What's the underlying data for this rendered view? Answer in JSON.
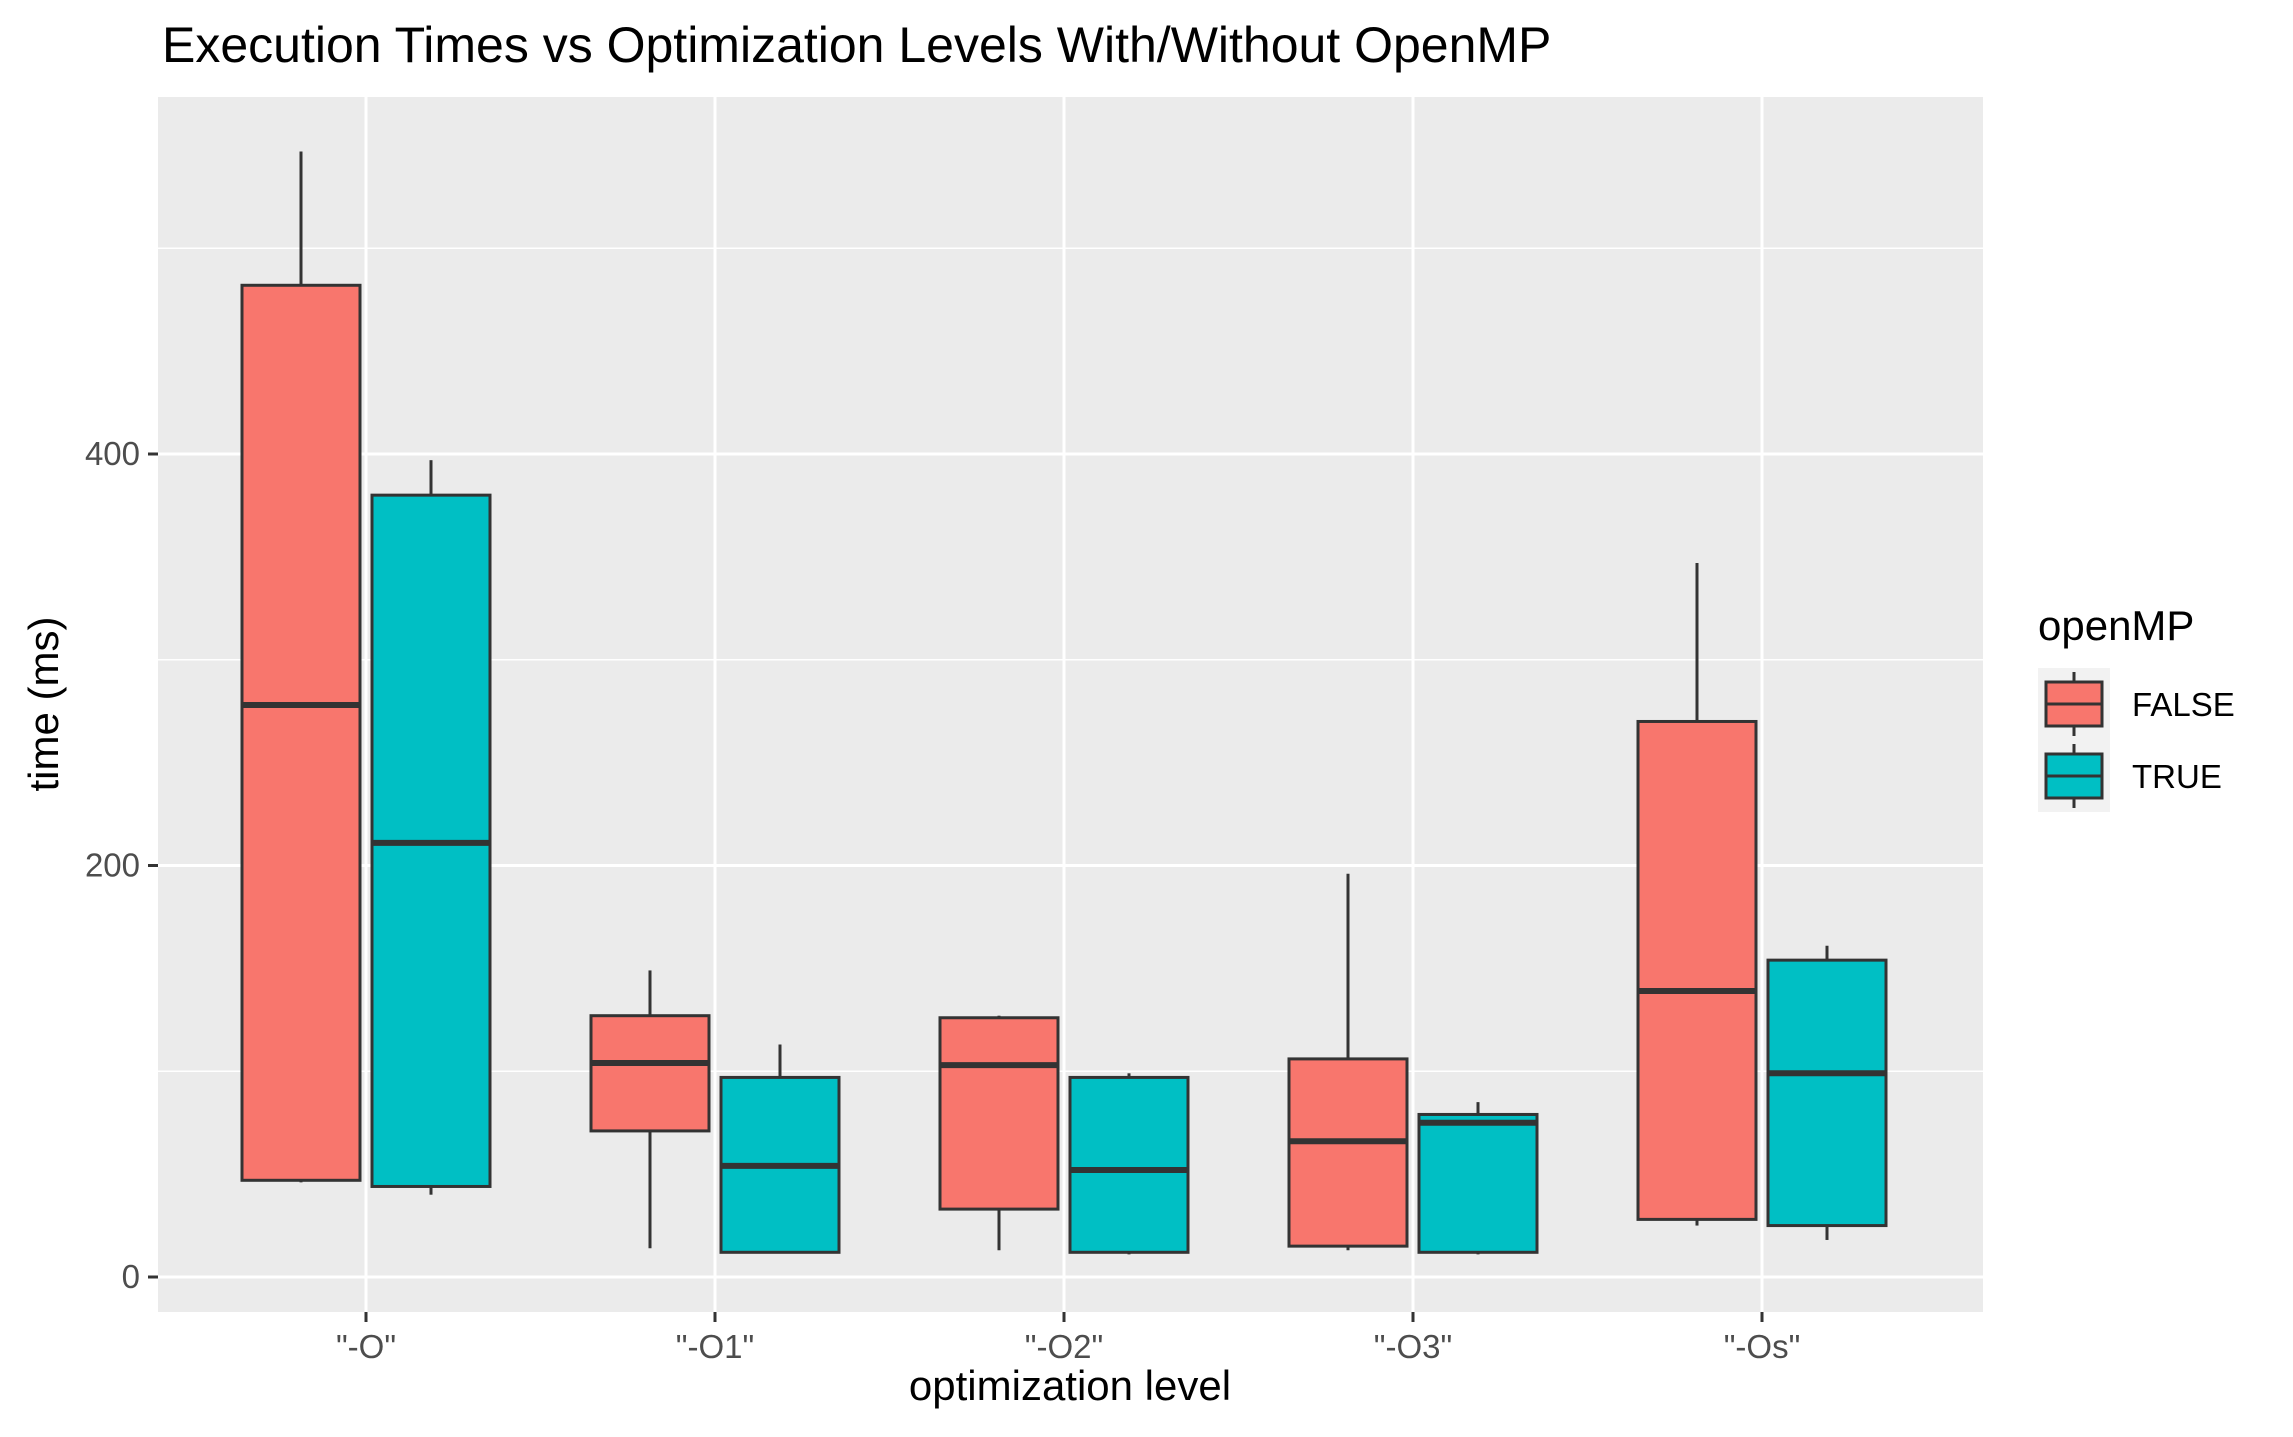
{
  "chart_data": {
    "type": "boxplot",
    "title": "Execution Times vs Optimization Levels With/Without OpenMP",
    "xlabel": "optimization level",
    "ylabel": "time (ms)",
    "categories": [
      "\"-O\"",
      "\"-O1\"",
      "\"-O2\"",
      "\"-O3\"",
      "\"-Os\""
    ],
    "y_ticks": [
      0,
      200,
      400
    ],
    "y_tick_labels": [
      "0",
      "200",
      "400"
    ],
    "ylim": [
      -16,
      550
    ],
    "grid": true,
    "legend": {
      "title": "openMP",
      "position": "right"
    },
    "series": [
      {
        "name": "FALSE",
        "color": "#F8766D",
        "boxes": [
          {
            "min": 46,
            "q1": 47,
            "median": 278,
            "q3": 482,
            "max": 547
          },
          {
            "min": 14,
            "q1": 71,
            "median": 104,
            "q3": 127,
            "max": 149
          },
          {
            "min": 13,
            "q1": 33,
            "median": 103,
            "q3": 126,
            "max": 127
          },
          {
            "min": 13,
            "q1": 15,
            "median": 66,
            "q3": 106,
            "max": 196
          },
          {
            "min": 25,
            "q1": 28,
            "median": 139,
            "q3": 270,
            "max": 347
          }
        ]
      },
      {
        "name": "TRUE",
        "color": "#00BFC4",
        "boxes": [
          {
            "min": 40,
            "q1": 44,
            "median": 211,
            "q3": 380,
            "max": 397
          },
          {
            "min": 12,
            "q1": 12,
            "median": 54,
            "q3": 97,
            "max": 113
          },
          {
            "min": 11,
            "q1": 12,
            "median": 52,
            "q3": 97,
            "max": 99
          },
          {
            "min": 11,
            "q1": 12,
            "median": 75,
            "q3": 79,
            "max": 85
          },
          {
            "min": 18,
            "q1": 25,
            "median": 99,
            "q3": 154,
            "max": 161
          }
        ]
      }
    ]
  }
}
